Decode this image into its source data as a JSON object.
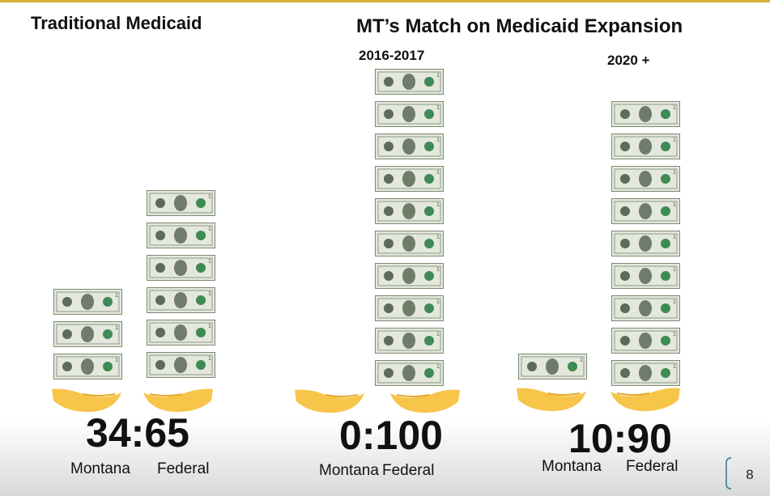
{
  "headings": {
    "traditional": "Traditional Medicaid",
    "expansion": "MT’s Match on Medicaid Expansion"
  },
  "panels": [
    {
      "ratio": "34:65",
      "left_label": "Montana",
      "right_label": "Federal"
    },
    {
      "period": "2016-2017",
      "ratio": "0:100",
      "left_label": "Montana",
      "right_label": "Federal"
    },
    {
      "period": "2020 +",
      "ratio": "10:90",
      "left_label": "Montana",
      "right_label": "Federal"
    }
  ],
  "page_number": "8"
}
